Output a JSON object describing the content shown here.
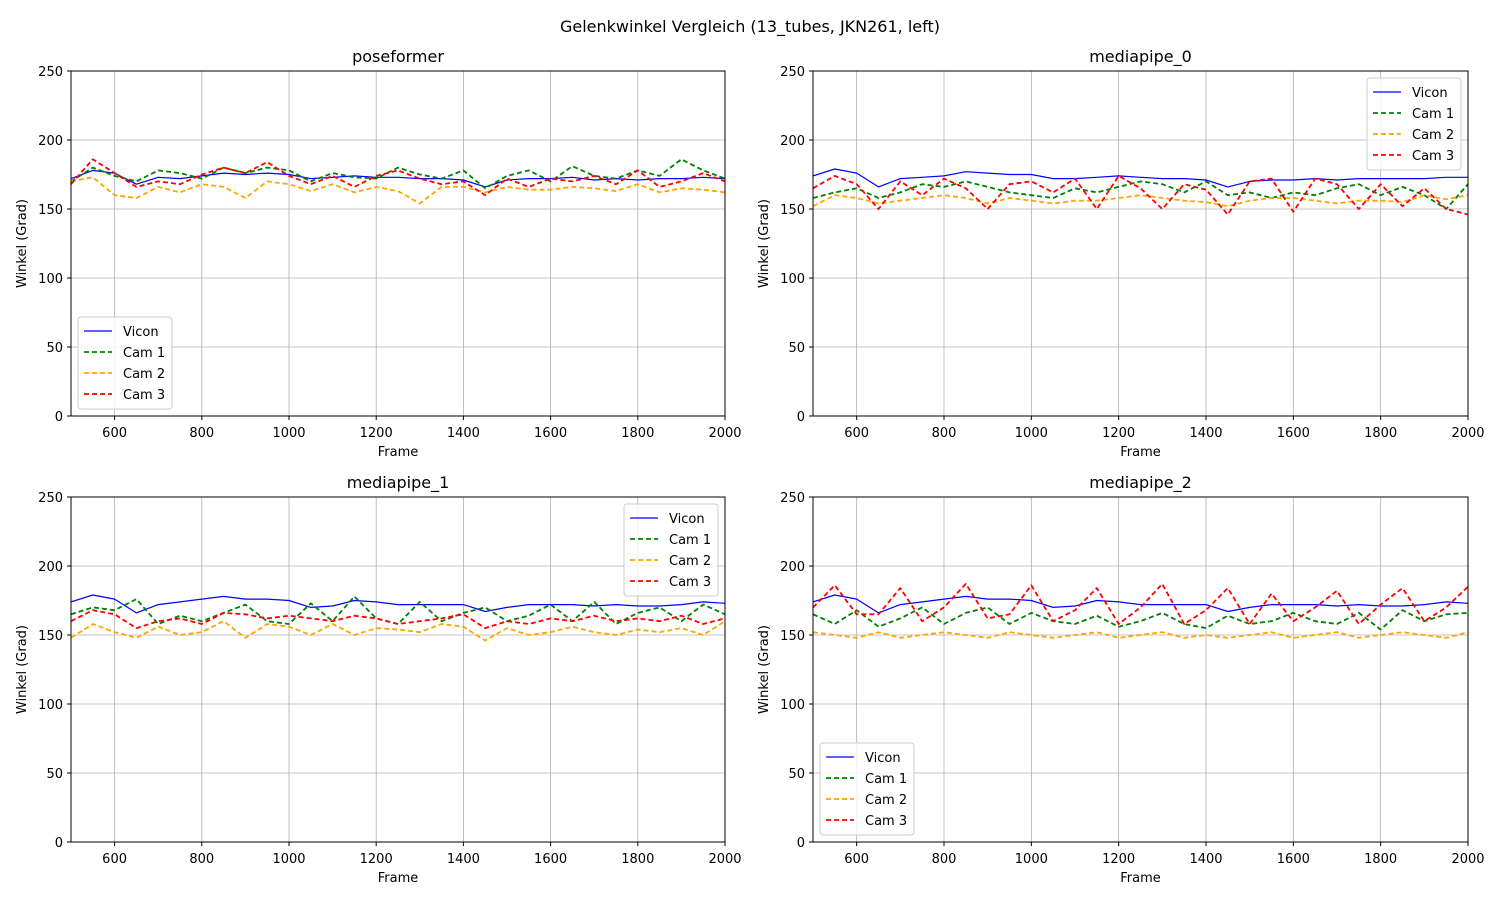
{
  "figure": {
    "suptitle": "Gelenkwinkel Vergleich (13_tubes, JKN261, left)"
  },
  "series_styles": [
    {
      "name": "Vicon",
      "color": "#0000ff",
      "dash": "solid"
    },
    {
      "name": "Cam 1",
      "color": "#008000",
      "dash": "dashed"
    },
    {
      "name": "Cam 2",
      "color": "#ffa500",
      "dash": "dashed"
    },
    {
      "name": "Cam 3",
      "color": "#ff0000",
      "dash": "dashed"
    }
  ],
  "chart_data": [
    {
      "type": "line",
      "title": "poseformer",
      "xlabel": "Frame",
      "ylabel": "Winkel (Grad)",
      "xlim": [
        500,
        2000
      ],
      "ylim": [
        0,
        250
      ],
      "xticks": [
        600,
        800,
        1000,
        1200,
        1400,
        1600,
        1800,
        2000
      ],
      "yticks": [
        0,
        50,
        100,
        150,
        200,
        250
      ],
      "grid": true,
      "legend": "lower-left",
      "x": [
        500,
        550,
        600,
        650,
        700,
        750,
        800,
        850,
        900,
        950,
        1000,
        1050,
        1100,
        1150,
        1200,
        1250,
        1300,
        1350,
        1400,
        1450,
        1500,
        1550,
        1600,
        1650,
        1700,
        1750,
        1800,
        1850,
        1900,
        1950,
        2000
      ],
      "series": [
        {
          "name": "Vicon",
          "values": [
            172,
            178,
            176,
            168,
            173,
            172,
            174,
            176,
            175,
            176,
            175,
            172,
            173,
            174,
            173,
            173,
            172,
            172,
            171,
            166,
            171,
            172,
            172,
            173,
            171,
            172,
            171,
            172,
            172,
            173,
            172
          ]
        },
        {
          "name": "Cam 1",
          "values": [
            170,
            180,
            174,
            170,
            178,
            176,
            172,
            180,
            176,
            180,
            178,
            170,
            176,
            173,
            172,
            180,
            175,
            172,
            178,
            165,
            174,
            178,
            170,
            181,
            174,
            172,
            178,
            174,
            186,
            178,
            172
          ]
        },
        {
          "name": "Cam 2",
          "values": [
            170,
            173,
            160,
            158,
            166,
            162,
            168,
            166,
            158,
            170,
            168,
            163,
            168,
            162,
            166,
            163,
            154,
            166,
            166,
            162,
            166,
            164,
            164,
            166,
            165,
            163,
            168,
            162,
            165,
            164,
            162
          ]
        },
        {
          "name": "Cam 3",
          "values": [
            168,
            186,
            176,
            166,
            170,
            168,
            175,
            180,
            176,
            184,
            174,
            168,
            174,
            166,
            174,
            178,
            172,
            168,
            170,
            160,
            172,
            166,
            172,
            170,
            174,
            168,
            178,
            166,
            170,
            176,
            170
          ]
        }
      ]
    },
    {
      "type": "line",
      "title": "mediapipe_0",
      "xlabel": "Frame",
      "ylabel": "Winkel (Grad)",
      "xlim": [
        500,
        2000
      ],
      "ylim": [
        0,
        250
      ],
      "xticks": [
        600,
        800,
        1000,
        1200,
        1400,
        1600,
        1800,
        2000
      ],
      "yticks": [
        0,
        50,
        100,
        150,
        200,
        250
      ],
      "grid": true,
      "legend": "upper-right",
      "x": [
        500,
        550,
        600,
        650,
        700,
        750,
        800,
        850,
        900,
        950,
        1000,
        1050,
        1100,
        1150,
        1200,
        1250,
        1300,
        1350,
        1400,
        1450,
        1500,
        1550,
        1600,
        1650,
        1700,
        1750,
        1800,
        1850,
        1900,
        1950,
        2000
      ],
      "series": [
        {
          "name": "Vicon",
          "values": [
            174,
            179,
            176,
            166,
            172,
            173,
            174,
            177,
            176,
            175,
            175,
            172,
            172,
            173,
            174,
            173,
            172,
            172,
            171,
            166,
            170,
            171,
            171,
            172,
            171,
            172,
            172,
            172,
            172,
            173,
            173
          ]
        },
        {
          "name": "Cam 1",
          "values": [
            158,
            162,
            165,
            158,
            162,
            168,
            166,
            170,
            166,
            162,
            160,
            158,
            165,
            162,
            166,
            170,
            168,
            162,
            170,
            160,
            162,
            158,
            162,
            160,
            165,
            168,
            160,
            166,
            160,
            150,
            168
          ]
        },
        {
          "name": "Cam 2",
          "values": [
            152,
            160,
            158,
            154,
            156,
            158,
            160,
            158,
            154,
            158,
            156,
            154,
            156,
            156,
            158,
            160,
            158,
            156,
            155,
            152,
            156,
            158,
            158,
            156,
            154,
            156,
            156,
            155,
            160,
            157,
            160
          ]
        },
        {
          "name": "Cam 3",
          "values": [
            165,
            174,
            168,
            150,
            170,
            160,
            172,
            165,
            150,
            168,
            170,
            162,
            172,
            150,
            174,
            165,
            150,
            168,
            164,
            146,
            170,
            172,
            148,
            172,
            168,
            150,
            168,
            152,
            165,
            150,
            146
          ]
        }
      ]
    },
    {
      "type": "line",
      "title": "mediapipe_1",
      "xlabel": "Frame",
      "ylabel": "Winkel (Grad)",
      "xlim": [
        500,
        2000
      ],
      "ylim": [
        0,
        250
      ],
      "xticks": [
        600,
        800,
        1000,
        1200,
        1400,
        1600,
        1800,
        2000
      ],
      "yticks": [
        0,
        50,
        100,
        150,
        200,
        250
      ],
      "grid": true,
      "legend": "upper-right",
      "x": [
        500,
        550,
        600,
        650,
        700,
        750,
        800,
        850,
        900,
        950,
        1000,
        1050,
        1100,
        1150,
        1200,
        1250,
        1300,
        1350,
        1400,
        1450,
        1500,
        1550,
        1600,
        1650,
        1700,
        1750,
        1800,
        1850,
        1900,
        1950,
        2000
      ],
      "series": [
        {
          "name": "Vicon",
          "values": [
            174,
            179,
            176,
            166,
            172,
            174,
            176,
            178,
            176,
            176,
            175,
            170,
            171,
            175,
            174,
            172,
            172,
            172,
            172,
            167,
            170,
            172,
            172,
            172,
            171,
            172,
            171,
            171,
            172,
            174,
            173
          ]
        },
        {
          "name": "Cam 1",
          "values": [
            165,
            170,
            168,
            176,
            158,
            164,
            160,
            166,
            172,
            160,
            158,
            173,
            160,
            178,
            162,
            158,
            174,
            160,
            166,
            170,
            160,
            164,
            172,
            160,
            174,
            158,
            166,
            170,
            160,
            172,
            165
          ]
        },
        {
          "name": "Cam 2",
          "values": [
            148,
            158,
            152,
            148,
            156,
            150,
            152,
            160,
            148,
            158,
            156,
            150,
            158,
            150,
            155,
            154,
            152,
            158,
            156,
            146,
            155,
            150,
            152,
            156,
            152,
            150,
            154,
            152,
            155,
            150,
            160
          ]
        },
        {
          "name": "Cam 3",
          "values": [
            160,
            168,
            165,
            155,
            160,
            162,
            158,
            166,
            165,
            162,
            164,
            162,
            160,
            164,
            162,
            158,
            160,
            162,
            165,
            155,
            160,
            158,
            162,
            160,
            164,
            160,
            162,
            160,
            164,
            158,
            162
          ]
        }
      ]
    },
    {
      "type": "line",
      "title": "mediapipe_2",
      "xlabel": "Frame",
      "ylabel": "Winkel (Grad)",
      "xlim": [
        500,
        2000
      ],
      "ylim": [
        0,
        250
      ],
      "xticks": [
        600,
        800,
        1000,
        1200,
        1400,
        1600,
        1800,
        2000
      ],
      "yticks": [
        0,
        50,
        100,
        150,
        200,
        250
      ],
      "grid": true,
      "legend": "lower-left",
      "x": [
        500,
        550,
        600,
        650,
        700,
        750,
        800,
        850,
        900,
        950,
        1000,
        1050,
        1100,
        1150,
        1200,
        1250,
        1300,
        1350,
        1400,
        1450,
        1500,
        1550,
        1600,
        1650,
        1700,
        1750,
        1800,
        1850,
        1900,
        1950,
        2000
      ],
      "series": [
        {
          "name": "Vicon",
          "values": [
            174,
            179,
            176,
            166,
            172,
            174,
            176,
            178,
            176,
            176,
            175,
            170,
            171,
            175,
            174,
            172,
            172,
            172,
            172,
            167,
            170,
            172,
            172,
            172,
            171,
            172,
            171,
            171,
            172,
            174,
            173
          ]
        },
        {
          "name": "Cam 1",
          "values": [
            165,
            158,
            168,
            156,
            162,
            170,
            158,
            166,
            170,
            158,
            166,
            160,
            158,
            164,
            156,
            160,
            166,
            158,
            155,
            164,
            158,
            160,
            166,
            160,
            158,
            166,
            154,
            168,
            160,
            165,
            166
          ]
        },
        {
          "name": "Cam 2",
          "values": [
            152,
            150,
            148,
            152,
            148,
            150,
            152,
            150,
            148,
            152,
            150,
            148,
            150,
            152,
            148,
            150,
            152,
            148,
            150,
            148,
            150,
            152,
            148,
            150,
            152,
            148,
            150,
            152,
            150,
            148,
            152
          ]
        },
        {
          "name": "Cam 3",
          "values": [
            170,
            186,
            165,
            165,
            184,
            160,
            170,
            187,
            162,
            165,
            186,
            160,
            168,
            184,
            158,
            170,
            187,
            158,
            168,
            184,
            158,
            180,
            160,
            170,
            182,
            158,
            172,
            184,
            160,
            170,
            185
          ]
        }
      ]
    }
  ]
}
